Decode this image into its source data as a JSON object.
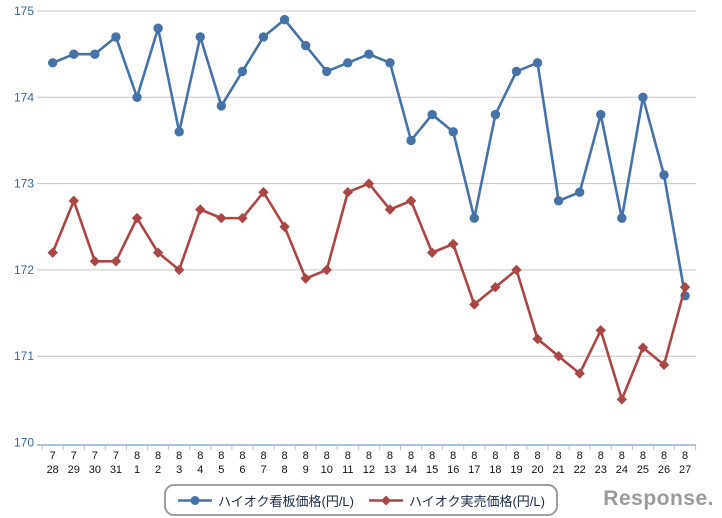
{
  "chart_data": {
    "type": "line",
    "title": "",
    "categories": [
      "7/28",
      "7/29",
      "7/30",
      "7/31",
      "8/1",
      "8/2",
      "8/3",
      "8/4",
      "8/5",
      "8/6",
      "8/7",
      "8/8",
      "8/9",
      "8/10",
      "8/11",
      "8/12",
      "8/13",
      "8/14",
      "8/15",
      "8/16",
      "8/17",
      "8/18",
      "8/19",
      "8/20",
      "8/21",
      "8/22",
      "8/23",
      "8/24",
      "8/25",
      "8/26",
      "8/27"
    ],
    "series": [
      {
        "name": "ハイオク看板価格(円/L)",
        "color": "#4572A7",
        "marker": "circle",
        "values": [
          174.4,
          174.5,
          174.5,
          174.7,
          174.0,
          174.8,
          173.6,
          174.7,
          173.9,
          174.3,
          174.7,
          174.9,
          174.6,
          174.3,
          174.4,
          174.5,
          174.4,
          173.5,
          173.8,
          173.6,
          172.6,
          173.8,
          174.3,
          174.4,
          172.8,
          172.9,
          173.8,
          172.6,
          174.0,
          173.1,
          171.7
        ]
      },
      {
        "name": "ハイオク実売価格(円/L)",
        "color": "#AA4643",
        "marker": "diamond",
        "values": [
          172.2,
          172.8,
          172.1,
          172.1,
          172.6,
          172.2,
          172.0,
          172.7,
          172.6,
          172.6,
          172.9,
          172.5,
          171.9,
          172.0,
          172.9,
          173.0,
          172.7,
          172.8,
          172.2,
          172.3,
          171.6,
          171.8,
          172.0,
          171.2,
          171.0,
          170.8,
          171.3,
          170.5,
          171.1,
          170.9,
          171.8
        ]
      }
    ],
    "ylim": [
      170,
      175
    ],
    "yticks": [
      170,
      171,
      172,
      173,
      174,
      175
    ],
    "xlabel": "",
    "ylabel": "",
    "grid": "horizontal",
    "legend_position": "bottom-center",
    "colors": {
      "grid": "#c5c5c5",
      "axis": "#a9c2da",
      "y_tick_label": "#33679e",
      "x_tick_label": "#111111"
    }
  },
  "branding": {
    "logo_text": "Response."
  }
}
